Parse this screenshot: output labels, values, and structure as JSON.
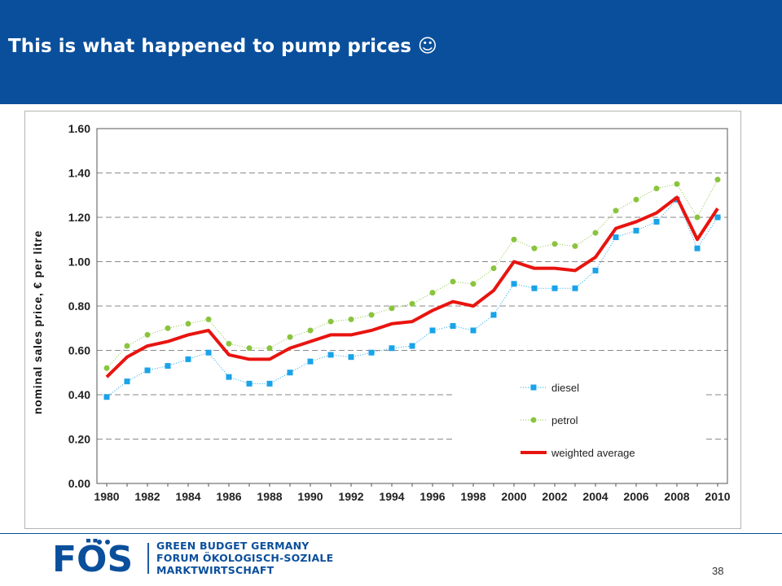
{
  "slide": {
    "title": "This is what happened to pump prices ☺",
    "page_number": "38"
  },
  "footer": {
    "logo_text": "FÖS",
    "org_line1": "GREEN BUDGET GERMANY",
    "org_line2": "FORUM ÖKOLOGISCH-SOZIALE",
    "org_line3": "MARKTWIRTSCHAFT"
  },
  "colors": {
    "header_bg": "#0a4f9c",
    "diesel": "#1aa3e8",
    "petrol": "#8ac43f",
    "weighted_average": "#e8140f"
  },
  "chart_data": {
    "type": "line",
    "title": "",
    "xlabel": "",
    "ylabel": "nominal sales price, € per litre",
    "ylim": [
      0,
      1.6
    ],
    "yticks": [
      "0.00",
      "0.20",
      "0.40",
      "0.60",
      "0.80",
      "1.00",
      "1.20",
      "1.40",
      "1.60"
    ],
    "xlim": [
      1980,
      2010
    ],
    "xticks": [
      "1980",
      "1982",
      "1984",
      "1986",
      "1988",
      "1990",
      "1992",
      "1994",
      "1996",
      "1998",
      "2000",
      "2002",
      "2004",
      "2006",
      "2008",
      "2010"
    ],
    "grid": "horizontal dashed",
    "legend_position": "bottom-right",
    "x": [
      1980,
      1981,
      1982,
      1983,
      1984,
      1985,
      1986,
      1987,
      1988,
      1989,
      1990,
      1991,
      1992,
      1993,
      1994,
      1995,
      1996,
      1997,
      1998,
      1999,
      2000,
      2001,
      2002,
      2003,
      2004,
      2005,
      2006,
      2007,
      2008,
      2009,
      2010
    ],
    "series": [
      {
        "name": "diesel",
        "style": "dotted line with square markers",
        "values": [
          0.39,
          0.46,
          0.51,
          0.53,
          0.56,
          0.59,
          0.48,
          0.45,
          0.45,
          0.5,
          0.55,
          0.58,
          0.57,
          0.59,
          0.61,
          0.62,
          0.69,
          0.71,
          0.69,
          0.76,
          0.9,
          0.88,
          0.88,
          0.88,
          0.96,
          1.11,
          1.14,
          1.18,
          1.28,
          1.06,
          1.2
        ]
      },
      {
        "name": "petrol",
        "style": "dotted line with circle markers",
        "values": [
          0.52,
          0.62,
          0.67,
          0.7,
          0.72,
          0.74,
          0.63,
          0.61,
          0.61,
          0.66,
          0.69,
          0.73,
          0.74,
          0.76,
          0.79,
          0.81,
          0.86,
          0.91,
          0.9,
          0.97,
          1.1,
          1.06,
          1.08,
          1.07,
          1.13,
          1.23,
          1.28,
          1.33,
          1.35,
          1.2,
          1.37
        ]
      },
      {
        "name": "weighted average",
        "style": "thick solid line",
        "values": [
          0.48,
          0.57,
          0.62,
          0.64,
          0.67,
          0.69,
          0.58,
          0.56,
          0.56,
          0.61,
          0.64,
          0.67,
          0.67,
          0.69,
          0.72,
          0.73,
          0.78,
          0.82,
          0.8,
          0.87,
          1.0,
          0.97,
          0.97,
          0.96,
          1.02,
          1.15,
          1.18,
          1.22,
          1.29,
          1.1,
          1.24
        ]
      }
    ]
  }
}
